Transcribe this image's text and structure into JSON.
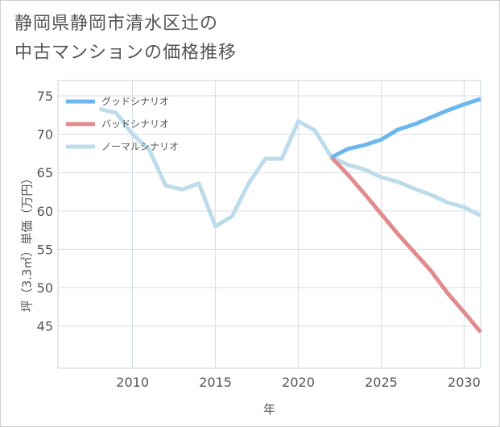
{
  "title": {
    "line1": "静岡県静岡市清水区辻の",
    "line2": "中古マンションの価格推移"
  },
  "chart_data": {
    "type": "line",
    "xlabel": "年",
    "ylabel": "坪（3.3㎡）単価（万円）",
    "xlim": [
      2005.5,
      2031
    ],
    "ylim": [
      39.5,
      77
    ],
    "xticks": [
      2010,
      2015,
      2020,
      2025,
      2030
    ],
    "yticks": [
      45,
      50,
      55,
      60,
      65,
      70,
      75
    ],
    "grid": true,
    "legend_position": "top-left",
    "series": [
      {
        "name": "グッドシナリオ",
        "color": "#6cb8ee",
        "x": [
          2022,
          2023,
          2024,
          2025,
          2026,
          2027,
          2028,
          2029,
          2030,
          2031
        ],
        "values": [
          67.0,
          68.1,
          68.6,
          69.3,
          70.6,
          71.3,
          72.2,
          73.1,
          73.9,
          74.6
        ]
      },
      {
        "name": "バッドシナリオ",
        "color": "#e08b8e",
        "x": [
          2022,
          2023,
          2024,
          2025,
          2026,
          2027,
          2028,
          2029,
          2030,
          2031
        ],
        "values": [
          67.0,
          64.7,
          62.2,
          59.6,
          57.0,
          54.6,
          52.2,
          49.3,
          46.8,
          44.2
        ]
      },
      {
        "name": "ノーマルシナリオ",
        "color": "#bcdcec",
        "x": [
          2008,
          2009,
          2010,
          2011,
          2012,
          2013,
          2014,
          2015,
          2016,
          2017,
          2018,
          2019,
          2020,
          2021,
          2022,
          2023,
          2024,
          2025,
          2026,
          2027,
          2028,
          2029,
          2030,
          2031
        ],
        "values": [
          73.3,
          72.8,
          70.0,
          68.0,
          63.3,
          62.8,
          63.6,
          58.0,
          59.3,
          63.6,
          66.8,
          66.8,
          71.7,
          70.5,
          67.0,
          66.0,
          65.4,
          64.4,
          63.8,
          62.9,
          62.1,
          61.1,
          60.5,
          59.4
        ]
      }
    ]
  }
}
